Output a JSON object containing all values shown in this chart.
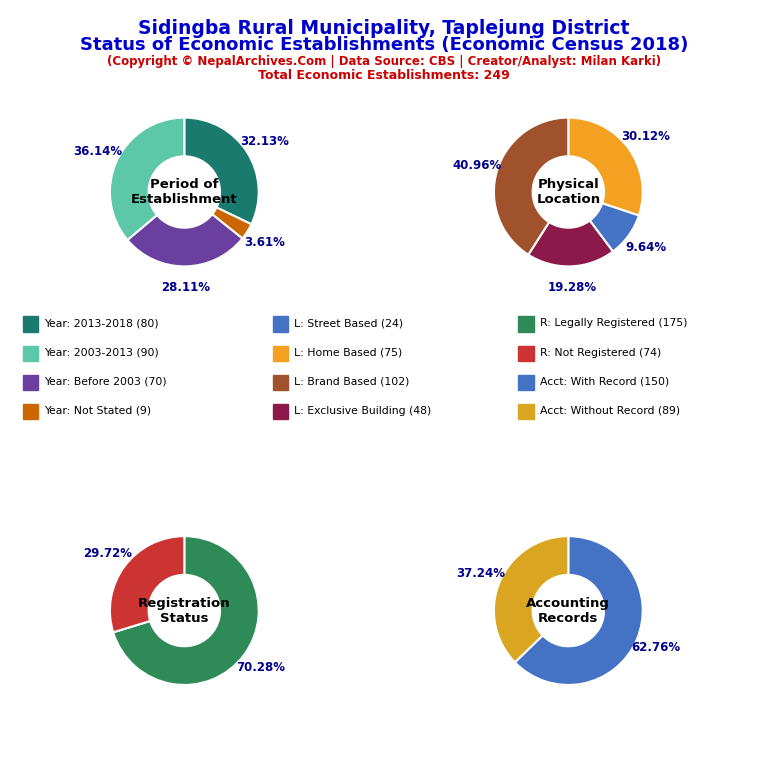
{
  "title_line1": "Sidingba Rural Municipality, Taplejung District",
  "title_line2": "Status of Economic Establishments (Economic Census 2018)",
  "subtitle": "(Copyright © NepalArchives.Com | Data Source: CBS | Creator/Analyst: Milan Karki)",
  "total_line": "Total Economic Establishments: 249",
  "title_color": "#0000CC",
  "subtitle_color": "#CC0000",
  "pie1": {
    "title": "Period of\nEstablishment",
    "values": [
      32.13,
      3.61,
      28.11,
      36.14
    ],
    "colors": [
      "#1B7A6E",
      "#CC6600",
      "#6B3FA0",
      "#5DC8A8"
    ],
    "labels": [
      "32.13%",
      "3.61%",
      "28.11%",
      "36.14%"
    ],
    "startangle": 90
  },
  "pie2": {
    "title": "Physical\nLocation",
    "values": [
      30.12,
      9.64,
      19.28,
      40.96
    ],
    "colors": [
      "#F4A020",
      "#4472C4",
      "#8B1A4A",
      "#A0522D"
    ],
    "labels": [
      "30.12%",
      "9.64%",
      "19.28%",
      "40.96%"
    ],
    "startangle": 90
  },
  "pie3": {
    "title": "Registration\nStatus",
    "values": [
      70.28,
      29.72
    ],
    "colors": [
      "#2E8B57",
      "#CC3333"
    ],
    "labels": [
      "70.28%",
      "29.72%"
    ],
    "startangle": 90
  },
  "pie4": {
    "title": "Accounting\nRecords",
    "values": [
      62.76,
      37.24
    ],
    "colors": [
      "#4472C4",
      "#DAA520"
    ],
    "labels": [
      "62.76%",
      "37.24%"
    ],
    "startangle": 90
  },
  "legend_items": [
    {
      "label": "Year: 2013-2018 (80)",
      "color": "#1B7A6E"
    },
    {
      "label": "Year: 2003-2013 (90)",
      "color": "#5DC8A8"
    },
    {
      "label": "Year: Before 2003 (70)",
      "color": "#6B3FA0"
    },
    {
      "label": "Year: Not Stated (9)",
      "color": "#CC6600"
    },
    {
      "label": "L: Street Based (24)",
      "color": "#4472C4"
    },
    {
      "label": "L: Home Based (75)",
      "color": "#F4A020"
    },
    {
      "label": "L: Brand Based (102)",
      "color": "#A0522D"
    },
    {
      "label": "L: Exclusive Building (48)",
      "color": "#8B1A4A"
    },
    {
      "label": "R: Legally Registered (175)",
      "color": "#2E8B57"
    },
    {
      "label": "R: Not Registered (74)",
      "color": "#CC3333"
    },
    {
      "label": "Acct: With Record (150)",
      "color": "#4472C4"
    },
    {
      "label": "Acct: Without Record (89)",
      "color": "#DAA520"
    }
  ]
}
